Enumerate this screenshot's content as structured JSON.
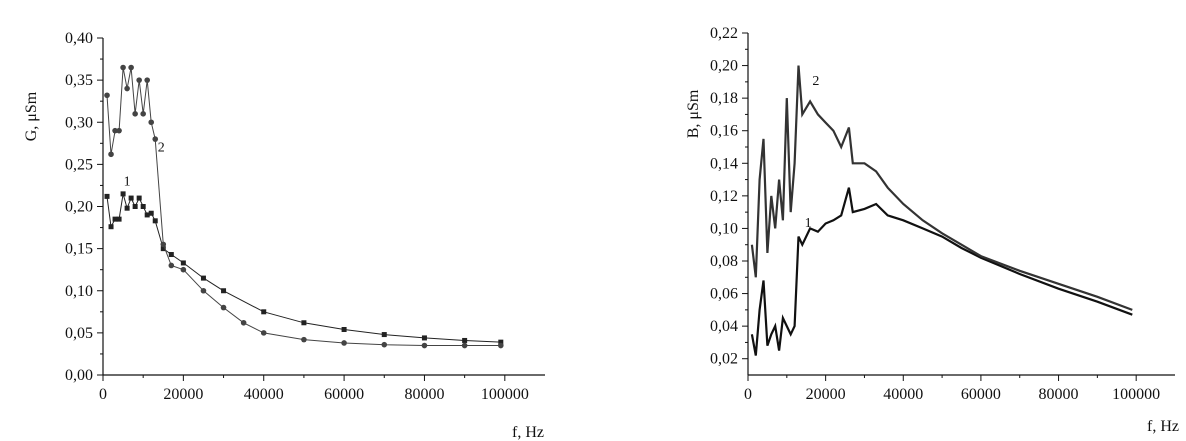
{
  "chart_data": [
    {
      "type": "line",
      "title": "",
      "xlabel": "f, Hz",
      "ylabel": "G, μSm",
      "xlim": [
        0,
        110000
      ],
      "ylim": [
        0,
        0.4
      ],
      "x_ticks": [
        0,
        20000,
        40000,
        60000,
        80000,
        100000
      ],
      "x_tick_labels": [
        "0",
        "20000",
        "40000",
        "60000",
        "80000",
        "100000"
      ],
      "y_ticks": [
        0,
        0.05,
        0.1,
        0.15,
        0.2,
        0.25,
        0.3,
        0.35,
        0.4
      ],
      "y_tick_labels": [
        "0,00",
        "0,05",
        "0,10",
        "0,15",
        "0,20",
        "0,25",
        "0,30",
        "0,35",
        "0,40"
      ],
      "marker_style": "markers",
      "series": [
        {
          "name": "1",
          "marker": "square",
          "color": "#222222",
          "x": [
            1000,
            2000,
            3000,
            4000,
            5000,
            6000,
            7000,
            8000,
            9000,
            10000,
            11000,
            12000,
            13000,
            15000,
            17000,
            20000,
            25000,
            30000,
            40000,
            50000,
            60000,
            70000,
            80000,
            90000,
            99000
          ],
          "y": [
            0.212,
            0.176,
            0.185,
            0.185,
            0.215,
            0.198,
            0.21,
            0.2,
            0.21,
            0.2,
            0.19,
            0.192,
            0.183,
            0.15,
            0.143,
            0.133,
            0.115,
            0.1,
            0.075,
            0.062,
            0.054,
            0.048,
            0.044,
            0.041,
            0.039
          ]
        },
        {
          "name": "2",
          "marker": "circle",
          "color": "#444444",
          "x": [
            1000,
            2000,
            3000,
            4000,
            5000,
            6000,
            7000,
            8000,
            9000,
            10000,
            11000,
            12000,
            13000,
            15000,
            17000,
            20000,
            25000,
            30000,
            35000,
            40000,
            50000,
            60000,
            70000,
            80000,
            90000,
            99000
          ],
          "y": [
            0.332,
            0.262,
            0.29,
            0.29,
            0.365,
            0.34,
            0.365,
            0.31,
            0.35,
            0.31,
            0.35,
            0.3,
            0.28,
            0.155,
            0.13,
            0.125,
            0.1,
            0.08,
            0.062,
            0.05,
            0.042,
            0.038,
            0.036,
            0.035,
            0.035,
            0.035
          ]
        }
      ],
      "annotations": [
        {
          "text": "1",
          "x": 6000,
          "y": 0.225
        },
        {
          "text": "2",
          "x": 14500,
          "y": 0.265
        }
      ]
    },
    {
      "type": "line",
      "title": "",
      "xlabel": "f, Hz",
      "ylabel": "B, μSm",
      "xlim": [
        0,
        110000
      ],
      "ylim": [
        0.01,
        0.22
      ],
      "x_ticks": [
        0,
        20000,
        40000,
        60000,
        80000,
        100000
      ],
      "x_tick_labels": [
        "0",
        "20000",
        "40000",
        "60000",
        "80000",
        "100000"
      ],
      "y_ticks": [
        0.02,
        0.04,
        0.06,
        0.08,
        0.1,
        0.12,
        0.14,
        0.16,
        0.18,
        0.2,
        0.22
      ],
      "y_tick_labels": [
        "0,02",
        "0,04",
        "0,06",
        "0,08",
        "0,10",
        "0,12",
        "0,14",
        "0,16",
        "0,18",
        "0,20",
        "0,22"
      ],
      "marker_style": "none",
      "series": [
        {
          "name": "1",
          "color": "#111111",
          "x": [
            1000,
            2000,
            3000,
            4000,
            5000,
            6000,
            7000,
            8000,
            9000,
            10000,
            11000,
            12000,
            13000,
            14000,
            16000,
            18000,
            20000,
            22000,
            24000,
            26000,
            27000,
            30000,
            33000,
            36000,
            40000,
            45000,
            50000,
            55000,
            60000,
            70000,
            80000,
            90000,
            99000
          ],
          "y": [
            0.035,
            0.022,
            0.05,
            0.068,
            0.028,
            0.035,
            0.04,
            0.025,
            0.045,
            0.04,
            0.035,
            0.04,
            0.095,
            0.09,
            0.1,
            0.098,
            0.103,
            0.105,
            0.108,
            0.125,
            0.11,
            0.112,
            0.115,
            0.108,
            0.105,
            0.1,
            0.095,
            0.088,
            0.082,
            0.072,
            0.063,
            0.055,
            0.047
          ]
        },
        {
          "name": "2",
          "color": "#333333",
          "x": [
            1000,
            2000,
            3000,
            4000,
            5000,
            6000,
            7000,
            8000,
            9000,
            10000,
            11000,
            12000,
            13000,
            14000,
            16000,
            18000,
            20000,
            22000,
            24000,
            26000,
            27000,
            30000,
            33000,
            36000,
            40000,
            45000,
            50000,
            55000,
            60000,
            70000,
            80000,
            90000,
            99000
          ],
          "y": [
            0.09,
            0.07,
            0.13,
            0.155,
            0.085,
            0.12,
            0.1,
            0.13,
            0.105,
            0.18,
            0.11,
            0.14,
            0.2,
            0.17,
            0.178,
            0.17,
            0.165,
            0.16,
            0.15,
            0.162,
            0.14,
            0.14,
            0.135,
            0.125,
            0.115,
            0.105,
            0.097,
            0.09,
            0.083,
            0.074,
            0.066,
            0.058,
            0.05
          ]
        }
      ],
      "annotations": [
        {
          "text": "1",
          "x": 15500,
          "y": 0.101
        },
        {
          "text": "2",
          "x": 17500,
          "y": 0.188
        }
      ]
    }
  ]
}
